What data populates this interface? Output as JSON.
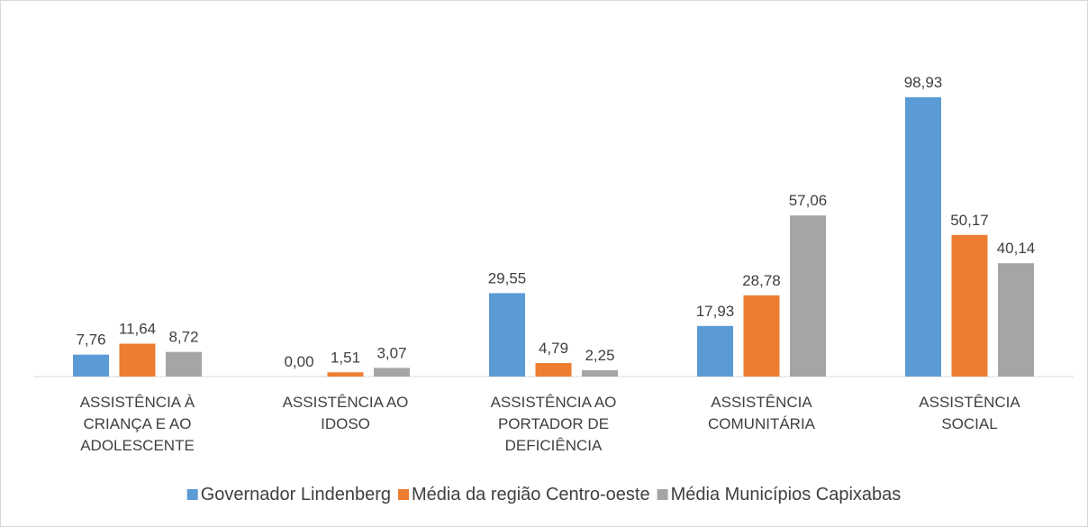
{
  "chart_data": {
    "type": "bar",
    "categories": [
      "ASSISTÊNCIA À CRIANÇA E AO ADOLESCENTE",
      "ASSISTÊNCIA AO IDOSO",
      "ASSISTÊNCIA AO PORTADOR DE DEFICIÊNCIA",
      "ASSISTÊNCIA COMUNITÁRIA",
      "ASSISTÊNCIA SOCIAL"
    ],
    "series": [
      {
        "name": "Governador Lindenberg",
        "color": "#5b9bd5",
        "values": [
          7.76,
          0,
          29.55,
          17.93,
          98.93
        ],
        "value_labels": [
          "7,76",
          "0,00",
          "29,55",
          "17,93",
          "98,93"
        ]
      },
      {
        "name": "Média da região Centro-oeste",
        "color": "#ed7d31",
        "values": [
          11.64,
          1.51,
          4.79,
          28.78,
          50.17
        ],
        "value_labels": [
          "11,64",
          "1,51",
          "4,79",
          "28,78",
          "50,17"
        ]
      },
      {
        "name": "Média Municípios Capixabas",
        "color": "#a5a5a5",
        "values": [
          8.72,
          3.07,
          2.25,
          57.06,
          40.14
        ],
        "value_labels": [
          "8,72",
          "3,07",
          "2,25",
          "57,06",
          "40,14"
        ]
      }
    ],
    "legend": "bottom"
  }
}
